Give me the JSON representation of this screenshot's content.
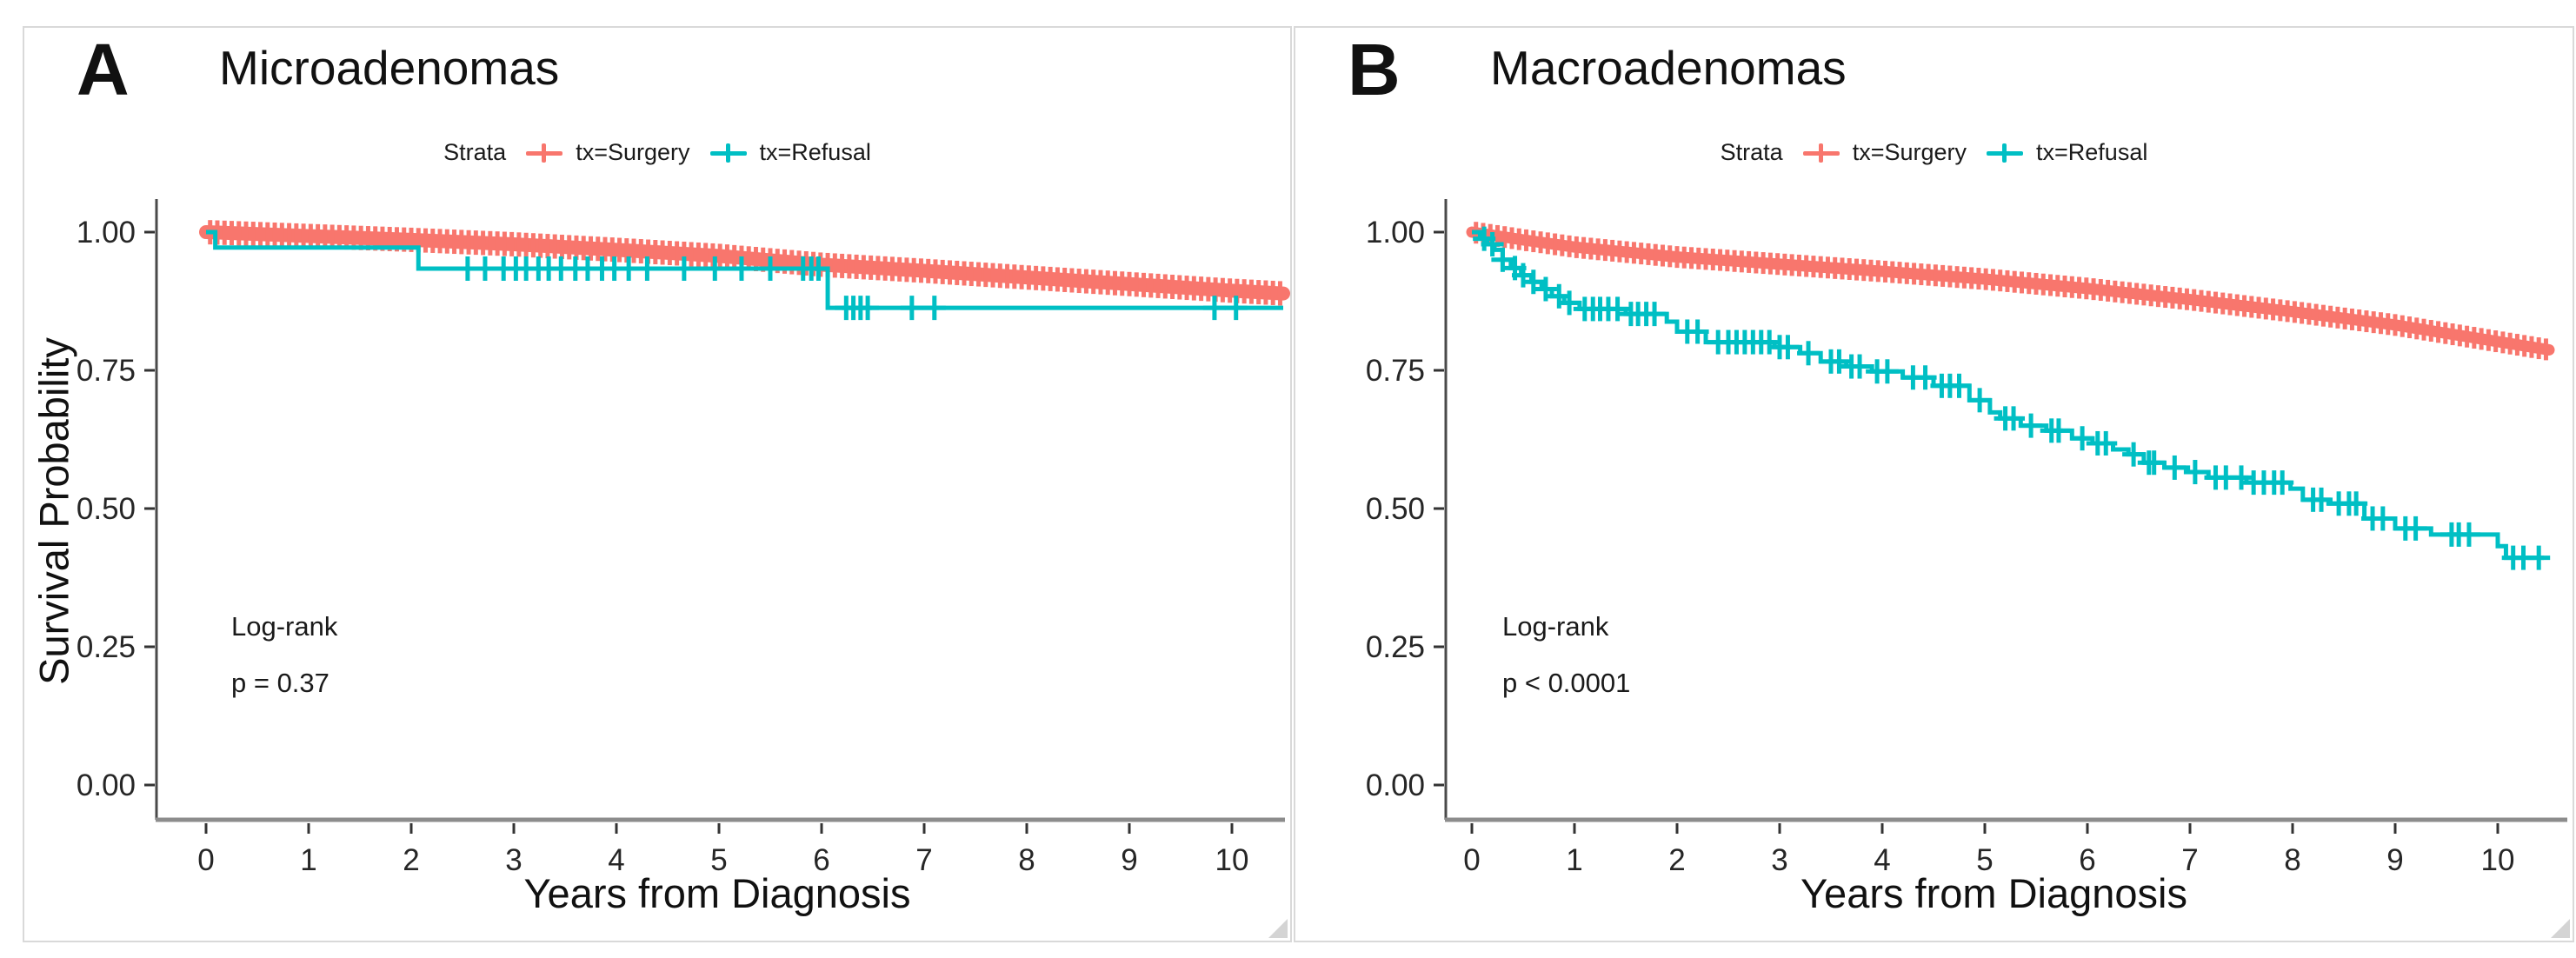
{
  "page": {
    "background": "#ffffff",
    "panel_border": "#d9d9d9",
    "axis_line_color": "#8c8c8c",
    "y_axis_line_color": "#4a4a4a",
    "tick_color": "#333333",
    "accent_red": "#F8766D",
    "accent_teal": "#00BFC4"
  },
  "chart_data": [
    {
      "type": "line",
      "subtype": "kaplan-meier-survival",
      "panel_label": "A",
      "title": "Microadenomas",
      "xlabel": "Years from Diagnosis",
      "ylabel": "Survival Probability",
      "xlim": [
        0,
        10.5
      ],
      "ylim": [
        0,
        1.0
      ],
      "grid": false,
      "legend": {
        "title": "Strata",
        "position": "top",
        "entries": [
          {
            "label": "tx=Surgery",
            "color": "#F8766D"
          },
          {
            "label": "tx=Refusal",
            "color": "#00BFC4"
          }
        ]
      },
      "xticks": [
        {
          "v": 0,
          "label": "0"
        },
        {
          "v": 1,
          "label": "1"
        },
        {
          "v": 2,
          "label": "2"
        },
        {
          "v": 3,
          "label": "3"
        },
        {
          "v": 4,
          "label": "4"
        },
        {
          "v": 5,
          "label": "5"
        },
        {
          "v": 6,
          "label": "6"
        },
        {
          "v": 7,
          "label": "7"
        },
        {
          "v": 8,
          "label": "8"
        },
        {
          "v": 9,
          "label": "9"
        },
        {
          "v": 10,
          "label": "10"
        }
      ],
      "yticks": [
        {
          "v": 1.0,
          "label": "1.00"
        },
        {
          "v": 0.75,
          "label": "0.75"
        },
        {
          "v": 0.5,
          "label": "0.50"
        },
        {
          "v": 0.25,
          "label": "0.25"
        },
        {
          "v": 0.0,
          "label": "0.00"
        }
      ],
      "annotation": {
        "line1": "Log-rank",
        "line2": "p = 0.37"
      },
      "series": [
        {
          "name": "tx=Surgery",
          "color": "#F8766D",
          "style": "band",
          "linewidth": 16,
          "points": [
            [
              0,
              1.0
            ],
            [
              1,
              0.993
            ],
            [
              2,
              0.986
            ],
            [
              3,
              0.978
            ],
            [
              4,
              0.968
            ],
            [
              5,
              0.957
            ],
            [
              6,
              0.941
            ],
            [
              7,
              0.93
            ],
            [
              8,
              0.918
            ],
            [
              9,
              0.906
            ],
            [
              10,
              0.894
            ],
            [
              10.5,
              0.889
            ]
          ]
        },
        {
          "name": "tx=Refusal",
          "color": "#00BFC4",
          "style": "step",
          "linewidth": 5,
          "steps": [
            [
              0,
              1.0
            ],
            [
              0.09,
              0.972
            ],
            [
              2.07,
              0.934
            ],
            [
              6.06,
              0.863
            ],
            [
              10.5,
              0.863
            ]
          ],
          "censor_times": [
            2.55,
            2.72,
            2.9,
            3.02,
            3.12,
            3.24,
            3.34,
            3.46,
            3.6,
            3.72,
            3.86,
            3.98,
            4.12,
            4.3,
            4.66,
            4.96,
            5.22,
            5.5,
            5.82,
            5.9,
            5.97,
            6.24,
            6.31,
            6.38,
            6.45,
            6.88,
            7.1,
            9.83,
            10.04
          ]
        }
      ]
    },
    {
      "type": "line",
      "subtype": "kaplan-meier-survival",
      "panel_label": "B",
      "title": "Macroadenomas",
      "xlabel": "Years from Diagnosis",
      "ylabel": "",
      "xlim": [
        0,
        10.5
      ],
      "ylim": [
        0,
        1.0
      ],
      "grid": false,
      "legend": {
        "title": "Strata",
        "position": "top",
        "entries": [
          {
            "label": "tx=Surgery",
            "color": "#F8766D"
          },
          {
            "label": "tx=Refusal",
            "color": "#00BFC4"
          }
        ]
      },
      "xticks": [
        {
          "v": 0,
          "label": "0"
        },
        {
          "v": 1,
          "label": "1"
        },
        {
          "v": 2,
          "label": "2"
        },
        {
          "v": 3,
          "label": "3"
        },
        {
          "v": 4,
          "label": "4"
        },
        {
          "v": 5,
          "label": "5"
        },
        {
          "v": 6,
          "label": "6"
        },
        {
          "v": 7,
          "label": "7"
        },
        {
          "v": 8,
          "label": "8"
        },
        {
          "v": 9,
          "label": "9"
        },
        {
          "v": 10,
          "label": "10"
        }
      ],
      "yticks": [
        {
          "v": 1.0,
          "label": "1.00"
        },
        {
          "v": 0.75,
          "label": "0.75"
        },
        {
          "v": 0.5,
          "label": "0.50"
        },
        {
          "v": 0.25,
          "label": "0.25"
        },
        {
          "v": 0.0,
          "label": "0.00"
        }
      ],
      "annotation": {
        "line1": "Log-rank",
        "line2": "p < 0.0001"
      },
      "series": [
        {
          "name": "tx=Surgery",
          "color": "#F8766D",
          "style": "band",
          "linewidth": 13,
          "points": [
            [
              0,
              1.0
            ],
            [
              0.5,
              0.986
            ],
            [
              1,
              0.973
            ],
            [
              2,
              0.955
            ],
            [
              3,
              0.942
            ],
            [
              4,
              0.929
            ],
            [
              5,
              0.915
            ],
            [
              6,
              0.898
            ],
            [
              7,
              0.878
            ],
            [
              8,
              0.856
            ],
            [
              9,
              0.832
            ],
            [
              10,
              0.802
            ],
            [
              10.5,
              0.787
            ]
          ]
        },
        {
          "name": "tx=Refusal",
          "color": "#00BFC4",
          "style": "step",
          "linewidth": 5,
          "steps": [
            [
              0,
              1.0
            ],
            [
              0.08,
              0.988
            ],
            [
              0.15,
              0.978
            ],
            [
              0.22,
              0.968
            ],
            [
              0.3,
              0.95
            ],
            [
              0.38,
              0.935
            ],
            [
              0.48,
              0.922
            ],
            [
              0.58,
              0.91
            ],
            [
              0.68,
              0.897
            ],
            [
              0.78,
              0.884
            ],
            [
              0.9,
              0.872
            ],
            [
              1.05,
              0.861
            ],
            [
              1.5,
              0.852
            ],
            [
              1.9,
              0.838
            ],
            [
              2.0,
              0.82
            ],
            [
              2.28,
              0.801
            ],
            [
              2.95,
              0.792
            ],
            [
              3.2,
              0.781
            ],
            [
              3.4,
              0.766
            ],
            [
              3.65,
              0.757
            ],
            [
              3.9,
              0.748
            ],
            [
              4.2,
              0.737
            ],
            [
              4.5,
              0.722
            ],
            [
              4.85,
              0.696
            ],
            [
              5.05,
              0.674
            ],
            [
              5.15,
              0.663
            ],
            [
              5.35,
              0.65
            ],
            [
              5.6,
              0.641
            ],
            [
              5.85,
              0.627
            ],
            [
              6.05,
              0.618
            ],
            [
              6.25,
              0.607
            ],
            [
              6.4,
              0.598
            ],
            [
              6.55,
              0.583
            ],
            [
              6.75,
              0.574
            ],
            [
              6.98,
              0.566
            ],
            [
              7.18,
              0.556
            ],
            [
              7.55,
              0.547
            ],
            [
              7.98,
              0.536
            ],
            [
              8.1,
              0.516
            ],
            [
              8.35,
              0.509
            ],
            [
              8.7,
              0.482
            ],
            [
              9.0,
              0.464
            ],
            [
              9.35,
              0.453
            ],
            [
              10.0,
              0.432
            ],
            [
              10.08,
              0.411
            ],
            [
              10.45,
              0.411
            ]
          ],
          "censor_times": [
            0.12,
            0.2,
            0.3,
            0.42,
            0.5,
            0.6,
            0.72,
            0.85,
            0.95,
            1.1,
            1.18,
            1.25,
            1.33,
            1.42,
            1.55,
            1.62,
            1.7,
            1.78,
            2.1,
            2.2,
            2.4,
            2.5,
            2.58,
            2.66,
            2.74,
            2.82,
            2.9,
            3.0,
            3.08,
            3.28,
            3.5,
            3.58,
            3.7,
            3.78,
            3.95,
            4.05,
            4.3,
            4.42,
            4.58,
            4.66,
            4.75,
            4.95,
            5.2,
            5.28,
            5.45,
            5.65,
            5.72,
            5.95,
            6.1,
            6.18,
            6.45,
            6.6,
            6.65,
            6.85,
            7.05,
            7.25,
            7.35,
            7.5,
            7.62,
            7.72,
            7.82,
            7.9,
            8.2,
            8.28,
            8.45,
            8.55,
            8.62,
            8.78,
            8.88,
            9.1,
            9.2,
            9.55,
            9.62,
            9.72,
            10.15,
            10.25,
            10.4
          ]
        }
      ]
    }
  ]
}
